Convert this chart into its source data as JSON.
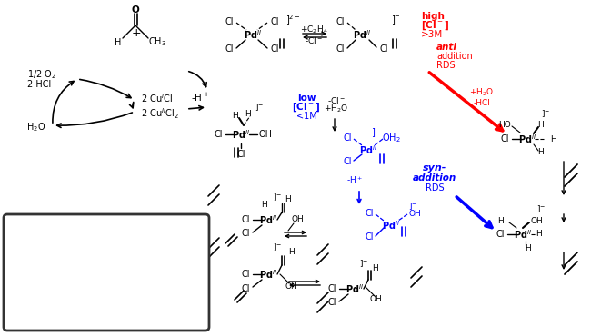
{
  "bg_color": "#ffffff",
  "figsize": [
    6.5,
    3.7
  ],
  "dpi": 100,
  "xlim": [
    0,
    650
  ],
  "ylim": [
    0,
    370
  ]
}
